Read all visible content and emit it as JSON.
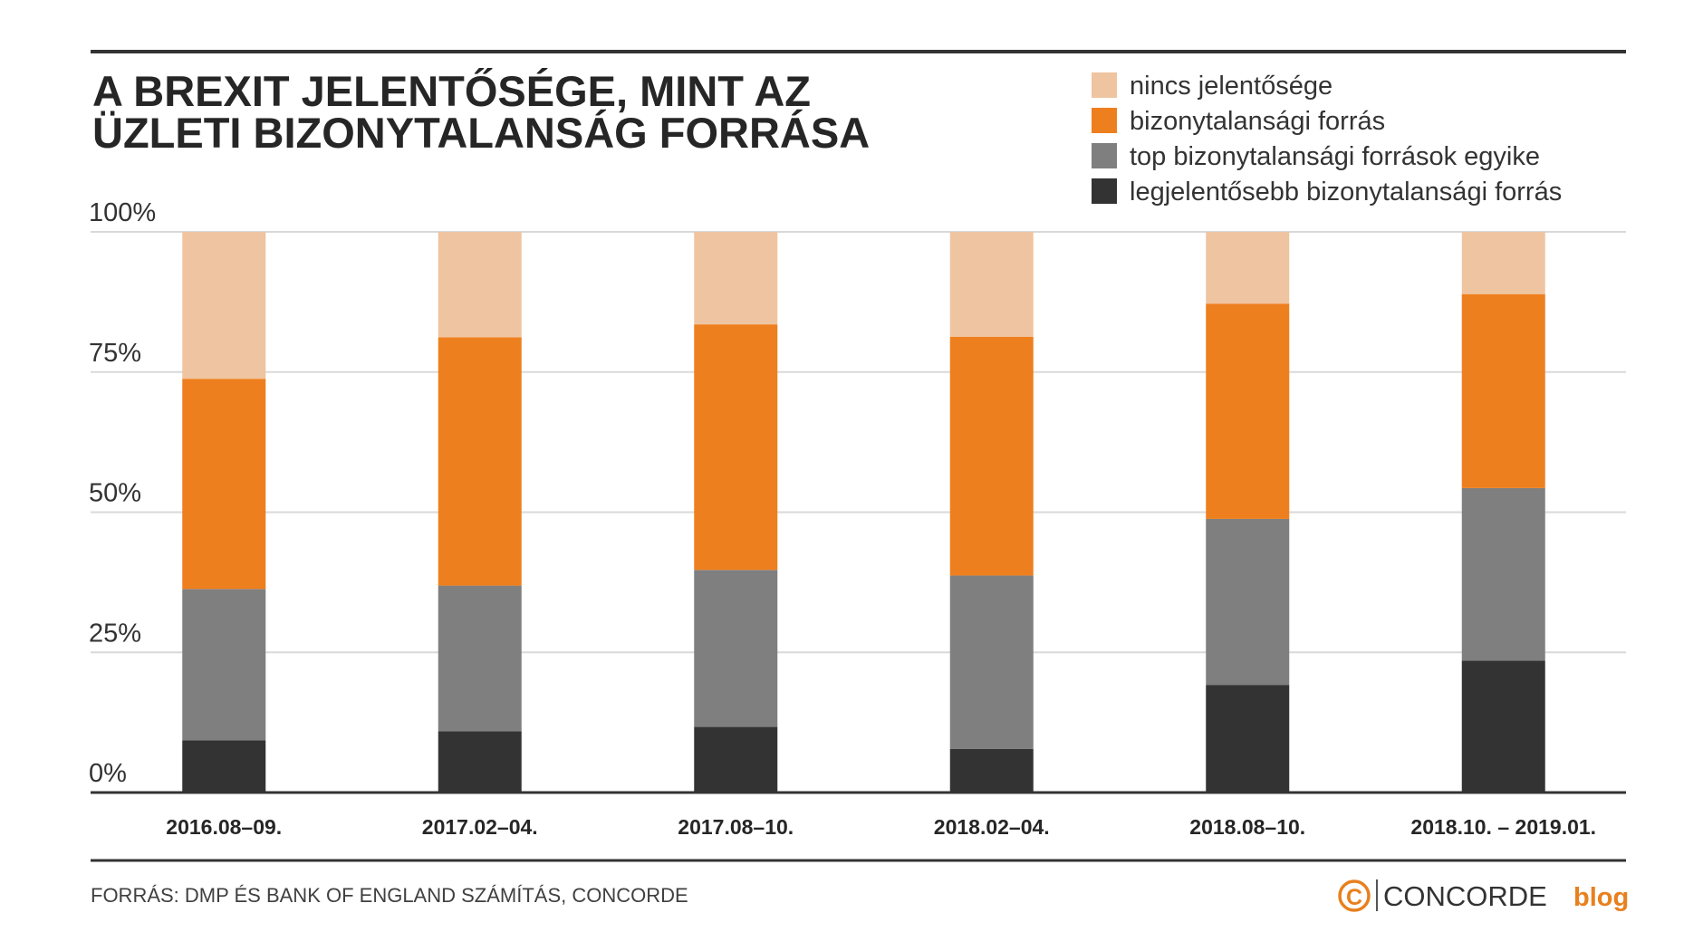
{
  "title_lines": [
    "A BREXIT JELENTŐSÉGE, MINT AZ",
    "ÜZLETI BIZONYTALANSÁG FORRÁSA"
  ],
  "source": "FORRÁS: DMP ÉS BANK OF ENGLAND SZÁMÍTÁS, CONCORDE",
  "logo": {
    "symbol": "C",
    "name": "CONCORDE",
    "suffix": "blog",
    "accent_color": "#E8801E"
  },
  "chart_data": {
    "type": "bar",
    "stacked": true,
    "title": "A BREXIT JELENTŐSÉGE, MINT AZ ÜZLETI BIZONYTALANSÁG FORRÁSA",
    "xlabel": "",
    "ylabel": "",
    "ylim": [
      0,
      100
    ],
    "y_ticks": [
      {
        "value": 0,
        "label": "0%"
      },
      {
        "value": 25,
        "label": "25%"
      },
      {
        "value": 50,
        "label": "50%"
      },
      {
        "value": 75,
        "label": "75%"
      },
      {
        "value": 100,
        "label": "100%"
      }
    ],
    "grid": true,
    "legend_position": "top-right",
    "categories": [
      "2016.08–09.",
      "2017.02–04.",
      "2017.08–10.",
      "2018.02–04.",
      "2018.08–10.",
      "2018.10. – 2019.01."
    ],
    "series": [
      {
        "name": "legjelentősebb bizonytalansági forrás",
        "color": "#333333",
        "values": [
          9.3,
          10.9,
          11.7,
          7.8,
          19.2,
          23.5
        ]
      },
      {
        "name": "top bizonytalansági források egyike",
        "color": "#7F7F7F",
        "values": [
          27.0,
          26.0,
          28.0,
          30.9,
          29.6,
          30.8
        ]
      },
      {
        "name": "bizonytalansági forrás",
        "color": "#EE7F1E",
        "values": [
          37.5,
          44.3,
          43.8,
          42.6,
          38.4,
          34.6
        ]
      },
      {
        "name": "nincs jelentősége",
        "color": "#EFC4A0",
        "values": [
          26.2,
          18.8,
          16.5,
          18.7,
          12.8,
          11.1
        ]
      }
    ],
    "legend_order": [
      3,
      2,
      1,
      0
    ]
  }
}
